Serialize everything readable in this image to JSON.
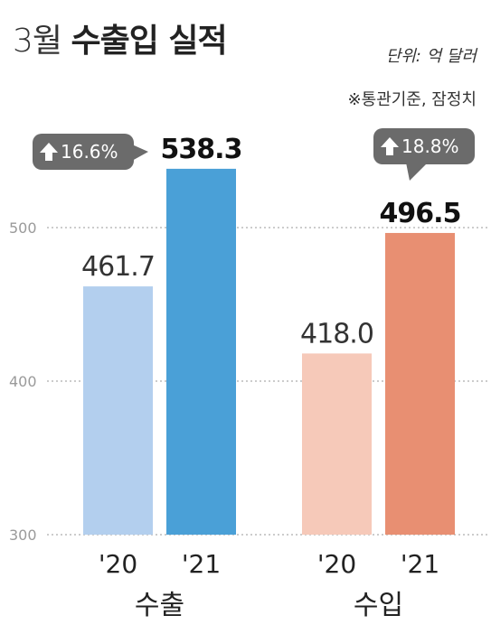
{
  "header": {
    "title_light": "3월",
    "title_bold": "수출입 실적",
    "unit": "단위: 억 달러",
    "source": "※통관기준, 잠정치"
  },
  "colors": {
    "export_2020": "#b3cfee",
    "export_2021": "#4aa0d7",
    "import_2020": "#f6c9b9",
    "import_2021": "#e88f72",
    "badge": "#6b6b6b",
    "grid": "#999999"
  },
  "chart_data": {
    "type": "bar",
    "ylim": [
      300,
      560
    ],
    "yticks": [
      300,
      400,
      500
    ],
    "grid": true,
    "groups": [
      {
        "name": "수출",
        "bars": [
          {
            "year": "'20",
            "value": 461.7,
            "label": "461.7",
            "color_key": "export_2020",
            "emphasis": false
          },
          {
            "year": "'21",
            "value": 538.3,
            "label": "538.3",
            "color_key": "export_2021",
            "emphasis": true
          }
        ],
        "change": "16.6%"
      },
      {
        "name": "수입",
        "bars": [
          {
            "year": "'20",
            "value": 418.0,
            "label": "418.0",
            "color_key": "import_2020",
            "emphasis": false
          },
          {
            "year": "'21",
            "value": 496.5,
            "label": "496.5",
            "color_key": "import_2021",
            "emphasis": true
          }
        ],
        "change": "18.8%"
      }
    ]
  }
}
